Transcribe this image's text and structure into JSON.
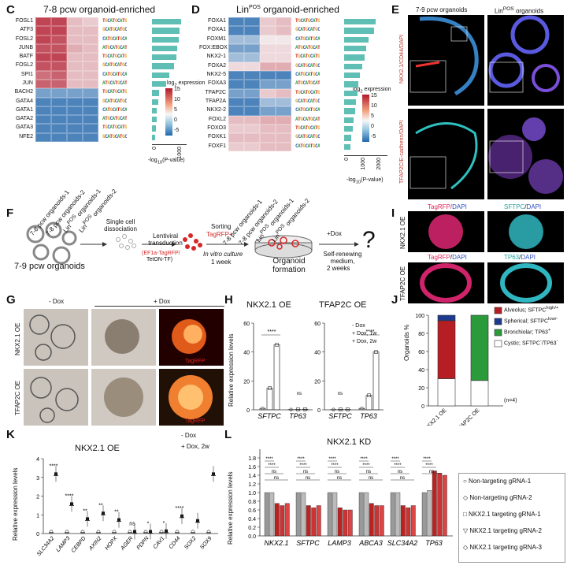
{
  "panels": {
    "C": "C",
    "D": "D",
    "E": "E",
    "F": "F",
    "G": "G",
    "H": "H",
    "I": "I",
    "J": "J",
    "K": "K",
    "L": "L"
  },
  "C": {
    "title": "7-8 pcw organoid-enriched",
    "genes": [
      "FOSL1",
      "ATF3",
      "FOSL2",
      "JUNB",
      "BATF",
      "FOSL2",
      "SPI1",
      "JUN",
      "BACH2",
      "GATA4",
      "GATA1",
      "GATA2",
      "GATA3",
      "NFE2"
    ],
    "columns": [
      "7-8 pcw organoids-1",
      "7-8 pcw organoids-2",
      "Lin<sup>POS</sup> organoids-1",
      "Lin<sup>POS</sup> organoids-2"
    ],
    "columns_plain": [
      "7-8 pcw organoids-1",
      "7-8 pcw organoids-2",
      "LinPOS organoids-1",
      "LinPOS organoids-2"
    ],
    "matrix": [
      [
        12,
        12,
        4,
        3
      ],
      [
        12,
        12,
        4,
        4
      ],
      [
        12,
        11,
        4,
        4
      ],
      [
        11,
        11,
        5,
        4
      ],
      [
        12,
        12,
        4,
        4
      ],
      [
        11,
        11,
        4,
        4
      ],
      [
        9,
        10,
        4,
        4
      ],
      [
        10,
        10,
        4,
        4
      ],
      [
        -3,
        -3,
        -3,
        -3
      ],
      [
        -4,
        -4,
        -4,
        -4
      ],
      [
        -4,
        -4,
        -4,
        -4
      ],
      [
        -4,
        -4,
        -4,
        -4
      ],
      [
        -4,
        -4,
        -4,
        -4
      ],
      [
        -4,
        -4,
        -4,
        -4
      ]
    ],
    "pvals": [
      1200,
      1150,
      1100,
      1050,
      1000,
      900,
      700,
      600,
      300,
      250,
      200,
      180,
      150,
      120
    ],
    "legend_title": "log2 expression",
    "legend_ticks": [
      "15",
      "10",
      "5",
      "0",
      "-5"
    ],
    "xaxis": "-log10(P-value)",
    "xticks": [
      "0",
      "1000"
    ]
  },
  "D": {
    "title": "LinPOS organoid-enriched",
    "genes": [
      "FOXA1",
      "FOXA1",
      "FOXM1",
      "FOX:EBOX",
      "NKX2-1",
      "FOXA2",
      "NKX2-5",
      "FOXA3",
      "TFAP2C",
      "TFAP2A",
      "NKX2-2",
      "FOXL2",
      "FOXO3",
      "FOXK1",
      "FOXF1"
    ],
    "columns": [
      "7-8 pcw organoids-1",
      "7-8 pcw organoids-2",
      "Lin<sup>POS</sup> organoids-1",
      "Lin<sup>POS</sup> organoids-2"
    ],
    "matrix": [
      [
        -4,
        -4,
        3,
        4
      ],
      [
        -4,
        -4,
        3,
        4
      ],
      [
        -2,
        -2,
        1,
        1
      ],
      [
        -3,
        -3,
        2,
        2
      ],
      [
        -2,
        -2,
        2,
        2
      ],
      [
        2,
        2,
        5,
        5
      ],
      [
        -4,
        -4,
        -4,
        -4
      ],
      [
        -4,
        -4,
        -3,
        -3
      ],
      [
        -3,
        -3,
        3,
        4
      ],
      [
        -4,
        -4,
        -2,
        -2
      ],
      [
        -4,
        -4,
        -3,
        -3
      ],
      [
        4,
        4,
        5,
        5
      ],
      [
        3,
        3,
        4,
        4
      ],
      [
        4,
        4,
        4,
        4
      ],
      [
        3,
        3,
        4,
        4
      ]
    ],
    "pvals": [
      1300,
      1250,
      1000,
      900,
      850,
      750,
      650,
      600,
      550,
      500,
      450,
      400,
      350,
      300,
      260
    ],
    "legend_title": "log2 expression",
    "legend_ticks": [
      "15",
      "10",
      "5",
      "0",
      "-5"
    ],
    "xaxis": "-log10(P-value)",
    "xticks": [
      "0",
      "1000",
      "2000"
    ]
  },
  "E": {
    "col1": "7-9 pcw organoids",
    "col2": "LinPOS organoids",
    "row1": "NKX2.1/CD44/DAPI",
    "row2": "TFAP2C/E-cadherin/DAPI"
  },
  "F": {
    "start": "7-9 pcw organoids",
    "step1": "Single cell dissociation",
    "step2": "Lentiviral transduction",
    "vector": "(EF1a-TagRFP/",
    "vector2": "TetON-TF)",
    "step3a": "Sorting",
    "step3b": "TagRFP+",
    "step4a": "In vitro culture",
    "step4b": "1 week",
    "formation": "Organoid formation",
    "step5a": "+Dox",
    "step5b": "Self-renewing medium,",
    "step5c": "2 weeks",
    "q": "?"
  },
  "G": {
    "minus": "- Dox",
    "plus": "+ Dox",
    "row1": "NKX2.1 OE",
    "row2": "TFAP2C OE",
    "tag": "TagRFP"
  },
  "H": {
    "title1": "NKX2.1 OE",
    "title2": "TFAP2C OE",
    "ylabel": "Relative expression levels",
    "legend": [
      "- Dox",
      "+ Dox, 1w",
      "+ Dox, 2w"
    ],
    "sig": [
      "****",
      "ns",
      "ns",
      "****"
    ]
  },
  "I": {
    "a": "TagRFP/DAPI",
    "b": "SFTPC/DAPI",
    "c": "TagRFP/DAPI",
    "d": "TP63/DAPI",
    "row1": "NKX2.1 OE",
    "row2": "TFAP2C OE"
  },
  "J": {
    "ylabel": "Organoids %",
    "legend": [
      "Alveolus; SFTPC high/+",
      "Spherical; SFTPC low/-",
      "Bronchiolar; TP63+",
      "Cystic; SFTPC-/TP63-"
    ],
    "n": "(n=4)",
    "colors": [
      "#b51e23",
      "#1d3a8c",
      "#2a9a3a",
      "#ffffff"
    ]
  },
  "K": {
    "title": "NKX2.1 OE",
    "ylabel": "Relative expression levels",
    "legend": [
      "- Dox",
      "+ Dox, 2w"
    ],
    "sig": [
      "****",
      "****",
      "**",
      "**",
      "**",
      "ns",
      "*",
      "*",
      "****"
    ]
  },
  "L": {
    "title": "NKX2.1 KD",
    "ylabel": "Relative expression levels",
    "sig": [
      "****",
      "****",
      "***",
      "ns",
      "ns"
    ],
    "legend": [
      "Non-targeting gRNA-1",
      "Non-targeting gRNA-2",
      "NKX2.1 targeting gRNA-1",
      "NKX2.1 targeting gRNA-2",
      "NKX2.1 targeting gRNA-3"
    ]
  },
  "chart_data": [
    {
      "type": "bar",
      "panel": "H-left",
      "categories": [
        "SFTPC",
        "TP63"
      ],
      "series": [
        {
          "name": "- Dox",
          "values": [
            1,
            0.2
          ]
        },
        {
          "name": "+ Dox, 1w",
          "values": [
            15,
            0.3
          ]
        },
        {
          "name": "+ Dox, 2w",
          "values": [
            45,
            0.4
          ]
        }
      ],
      "ylim": [
        0,
        60
      ],
      "yticks": [
        0,
        20,
        40,
        60
      ]
    },
    {
      "type": "bar",
      "panel": "H-right",
      "categories": [
        "SFTPC",
        "TP63"
      ],
      "series": [
        {
          "name": "- Dox",
          "values": [
            0.2,
            1
          ]
        },
        {
          "name": "+ Dox, 1w",
          "values": [
            0.3,
            10
          ]
        },
        {
          "name": "+ Dox, 2w",
          "values": [
            0.3,
            40
          ]
        }
      ],
      "ylim": [
        0,
        60
      ],
      "yticks": [
        0,
        20,
        40,
        60
      ]
    },
    {
      "type": "bar",
      "panel": "J",
      "categories": [
        "NKX2.1 OE",
        "TFAP2C OE"
      ],
      "series": [
        {
          "name": "Cystic; SFTPC-/TP63-",
          "values": [
            30,
            28
          ]
        },
        {
          "name": "Alveolus; SFTPC high/+",
          "values": [
            64,
            0
          ]
        },
        {
          "name": "Spherical; SFTPC low/-",
          "values": [
            6,
            0
          ]
        },
        {
          "name": "Bronchiolar; TP63+",
          "values": [
            0,
            72
          ]
        }
      ],
      "ylim": [
        0,
        100
      ],
      "yticks": [
        0,
        20,
        40,
        60,
        80,
        100
      ]
    },
    {
      "type": "bar",
      "panel": "K",
      "categories": [
        "SLC34A2",
        "LAMP3",
        "CEBPD",
        "AXIN2",
        "HOPX",
        "AGER",
        "PDPN",
        "CAV1",
        "CD44",
        "SOX2",
        "SOX9"
      ],
      "series": [
        {
          "name": "- Dox",
          "values": [
            0.05,
            0.05,
            0.05,
            0.05,
            0.05,
            0.05,
            0.05,
            0.05,
            0.05,
            0.05,
            0.05
          ]
        },
        {
          "name": "+ Dox, 2w",
          "values": [
            3.1,
            1.5,
            0.7,
            1.0,
            0.65,
            0.02,
            0.02,
            0.05,
            0.85,
            0.6,
            3.1
          ]
        }
      ],
      "ylim": [
        0,
        4
      ],
      "yticks": [
        0,
        1,
        2,
        3,
        4
      ]
    },
    {
      "type": "bar",
      "panel": "L",
      "categories": [
        "NKX2.1",
        "SFTPC",
        "LAMP3",
        "ABCA3",
        "SLC34A2",
        "TP63"
      ],
      "series": [
        {
          "name": "Non-targeting gRNA-1",
          "values": [
            1,
            1,
            1,
            1,
            1,
            1
          ]
        },
        {
          "name": "Non-targeting gRNA-2",
          "values": [
            1,
            1,
            1,
            1,
            1,
            1.05
          ]
        },
        {
          "name": "NKX2.1 targeting gRNA-1",
          "values": [
            0.75,
            0.7,
            0.65,
            0.75,
            0.7,
            1.5
          ]
        },
        {
          "name": "NKX2.1 targeting gRNA-2",
          "values": [
            0.7,
            0.65,
            0.6,
            0.7,
            0.65,
            1.45
          ]
        },
        {
          "name": "NKX2.1 targeting gRNA-3",
          "values": [
            0.75,
            0.7,
            0.6,
            0.7,
            0.7,
            1.4
          ]
        }
      ],
      "ylim": [
        0,
        2.0
      ],
      "yticks": [
        0,
        0.2,
        0.4,
        0.6,
        0.8,
        1.0,
        1.2,
        1.4,
        1.6,
        1.8
      ]
    }
  ]
}
